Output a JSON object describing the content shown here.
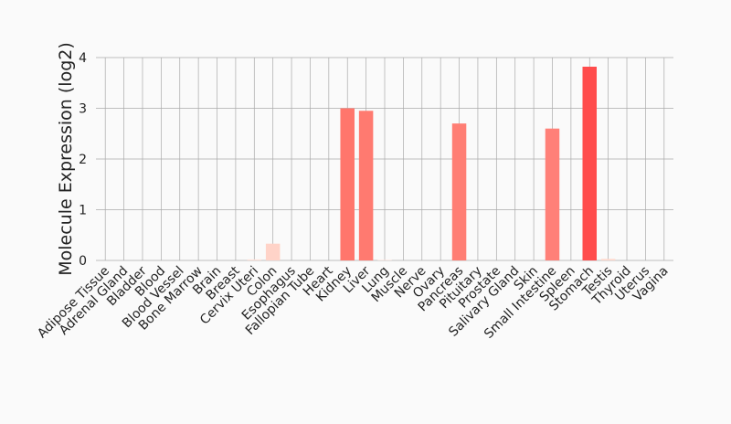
{
  "chart_data": {
    "type": "bar",
    "y_label": "Molecule Expression (log2)",
    "categories": [
      "Adipose Tissue",
      "Adrenal Gland",
      "Bladder",
      "Blood",
      "Blood Vessel",
      "Bone Marrow",
      "Brain",
      "Breast",
      "Cervix Uteri",
      "Colon",
      "Esophagus",
      "Fallopian Tube",
      "Heart",
      "Kidney",
      "Liver",
      "Lung",
      "Muscle",
      "Nerve",
      "Ovary",
      "Pancreas",
      "Pituitary",
      "Prostate",
      "Salivary Gland",
      "Skin",
      "Small Intestine",
      "Spleen",
      "Stomach",
      "Testis",
      "Thyroid",
      "Uterus",
      "Vagina"
    ],
    "values": [
      0,
      0,
      0,
      0,
      0,
      0,
      0,
      0,
      0.02,
      0.33,
      0,
      0,
      0,
      3.0,
      2.95,
      0.01,
      0,
      0,
      0,
      2.7,
      0,
      0,
      0,
      0,
      2.6,
      0,
      3.82,
      0.03,
      0,
      0,
      0
    ],
    "colors": [
      "#ffe8e0",
      "#ffe8e0",
      "#ffe8e0",
      "#ffe8e0",
      "#ffe8e0",
      "#ffe8e0",
      "#ffe8e0",
      "#ffe8e0",
      "#ffe0d8",
      "#ffd3c8",
      "#ffe8e0",
      "#ffe8e0",
      "#ffe8e0",
      "#ff766c",
      "#ff7a70",
      "#ffe0d8",
      "#ffe8e0",
      "#ffe8e0",
      "#ffe8e0",
      "#ff7e74",
      "#ffe8e0",
      "#ffe8e0",
      "#ffe8e0",
      "#ffe8e0",
      "#ff8078",
      "#ffe8e0",
      "#ff4c4c",
      "#ffd8cc",
      "#ffe8e0",
      "#ffe8e0",
      "#ffe8e0"
    ],
    "ylim": [
      0,
      4
    ],
    "yticks": [
      0,
      1,
      2,
      3,
      4
    ],
    "grid": true
  }
}
